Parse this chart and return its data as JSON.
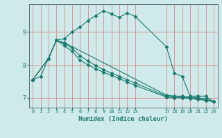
{
  "xlabel": "Humidex (Indice chaleur)",
  "background_color": "#ceeaea",
  "grid_color": "#e08888",
  "line_color": "#1a7a6e",
  "xlim": [
    -0.5,
    23.5
  ],
  "ylim": [
    6.7,
    9.85
  ],
  "xtick_vals": [
    0,
    1,
    2,
    3,
    4,
    5,
    6,
    7,
    8,
    9,
    10,
    11,
    12,
    13,
    17,
    18,
    19,
    20,
    21,
    22,
    23
  ],
  "xtick_labels": [
    "0",
    "1",
    "2",
    "3",
    "4",
    "5",
    "6",
    "7",
    "8",
    "9",
    "10",
    "11",
    "12",
    "13",
    "17",
    "18",
    "19",
    "20",
    "21",
    "22",
    "23"
  ],
  "yticks": [
    7,
    8,
    9
  ],
  "lines": [
    {
      "x": [
        0,
        1,
        2,
        3,
        4,
        5,
        6,
        7,
        8,
        9,
        10,
        11,
        12,
        13,
        17,
        18,
        19,
        20,
        21,
        22,
        23
      ],
      "y": [
        7.55,
        7.65,
        8.2,
        8.75,
        8.8,
        9.0,
        9.15,
        9.35,
        9.5,
        9.65,
        9.55,
        9.45,
        9.58,
        9.48,
        8.55,
        7.75,
        7.65,
        7.05,
        7.05,
        7.05,
        6.88
      ]
    },
    {
      "x": [
        0,
        2,
        3,
        4,
        5,
        6,
        7,
        8,
        9,
        10,
        11,
        12,
        13,
        17,
        18,
        19,
        20,
        21,
        22,
        23
      ],
      "y": [
        7.55,
        8.2,
        8.75,
        8.58,
        8.42,
        8.15,
        8.0,
        7.88,
        7.78,
        7.68,
        7.58,
        7.48,
        7.38,
        7.02,
        7.0,
        7.0,
        6.98,
        6.95,
        6.92,
        6.88
      ]
    },
    {
      "x": [
        0,
        2,
        3,
        4,
        5,
        6,
        7,
        8,
        9,
        10,
        11,
        12,
        13,
        17,
        18,
        19,
        20,
        21,
        22,
        23
      ],
      "y": [
        7.55,
        8.2,
        8.75,
        8.65,
        8.52,
        8.28,
        8.12,
        7.98,
        7.85,
        7.75,
        7.65,
        7.55,
        7.45,
        7.05,
        7.02,
        7.02,
        7.0,
        6.97,
        6.93,
        6.88
      ]
    },
    {
      "x": [
        0,
        2,
        3,
        4,
        17,
        18,
        19,
        20,
        21,
        22,
        23
      ],
      "y": [
        7.55,
        8.2,
        8.75,
        8.68,
        7.08,
        7.05,
        7.05,
        7.02,
        7.0,
        6.97,
        6.88
      ]
    }
  ]
}
